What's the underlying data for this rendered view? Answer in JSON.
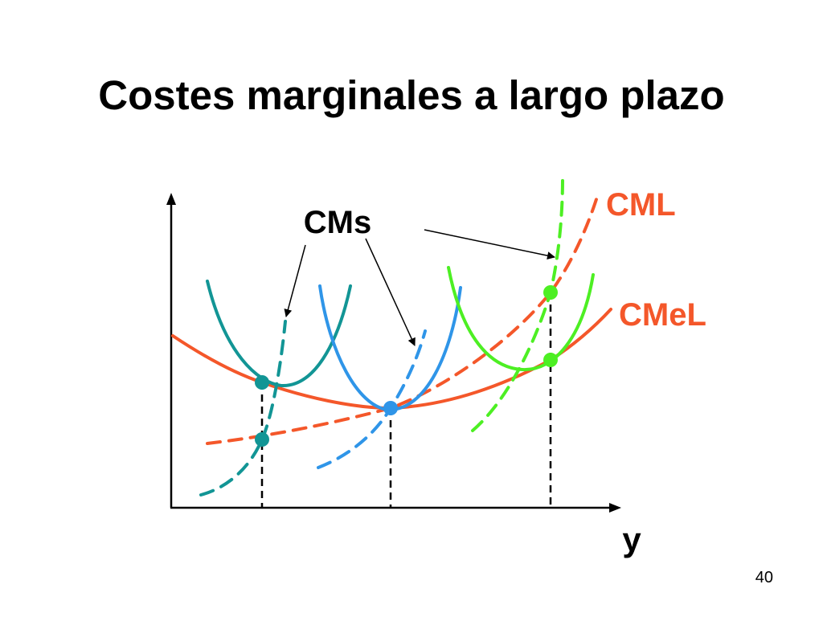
{
  "slide": {
    "title": "Costes marginales a largo plazo",
    "page_number": "40"
  },
  "diagram": {
    "labels": {
      "short_run_mc": "CMs",
      "long_run_mc": "CML",
      "long_run_avg_cost": "CMeL",
      "x_axis": "y"
    },
    "colors": {
      "long_run": "#f4572a",
      "short_run_1": "#129595",
      "short_run_2": "#2f95e8",
      "short_run_3": "#4def23",
      "axis": "#000000"
    }
  }
}
